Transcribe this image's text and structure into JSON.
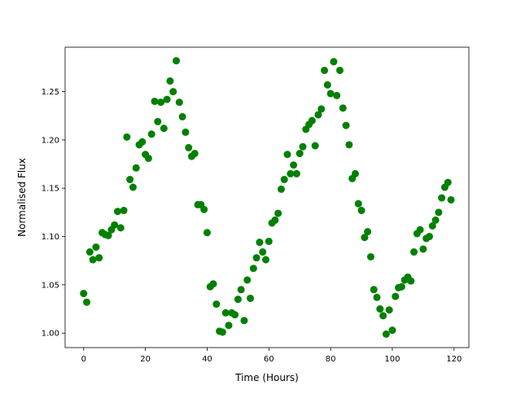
{
  "chart_data": {
    "type": "scatter",
    "title": "",
    "xlabel": "Time (Hours)",
    "ylabel": "Normalised Flux",
    "xlim": [
      -6,
      124.8
    ],
    "ylim": [
      0.985,
      1.296
    ],
    "xticks": [
      0,
      20,
      40,
      60,
      80,
      100,
      120
    ],
    "xtick_labels": [
      "0",
      "20",
      "40",
      "60",
      "80",
      "100",
      "120"
    ],
    "yticks": [
      1.0,
      1.05,
      1.1,
      1.15,
      1.2,
      1.25
    ],
    "ytick_labels": [
      "1.00",
      "1.05",
      "1.10",
      "1.15",
      "1.20",
      "1.25"
    ],
    "grid": false,
    "marker_color": "#008000",
    "x": [
      0,
      1,
      2,
      3,
      4,
      5,
      6,
      7,
      8,
      9,
      10,
      11,
      12,
      13,
      14,
      15,
      16,
      17,
      18,
      19,
      20,
      21,
      22,
      23,
      24,
      25,
      26,
      27,
      28,
      29,
      30,
      31,
      32,
      33,
      34,
      35,
      36,
      37,
      38,
      39,
      40,
      41,
      42,
      43,
      44,
      45,
      46,
      47,
      48,
      49,
      50,
      51,
      52,
      53,
      54,
      55,
      56,
      57,
      58,
      59,
      60,
      61,
      62,
      63,
      64,
      65,
      66,
      67,
      68,
      69,
      70,
      71,
      72,
      73,
      74,
      75,
      76,
      77,
      78,
      79,
      80,
      81,
      82,
      83,
      84,
      85,
      86,
      87,
      88,
      89,
      90,
      91,
      92,
      93,
      94,
      95,
      96,
      97,
      98,
      99,
      100,
      101,
      102,
      103,
      104,
      105,
      106,
      107,
      108,
      109,
      110,
      111,
      112,
      113,
      114,
      115,
      116,
      117,
      118,
      119
    ],
    "y": [
      1.041,
      1.032,
      1.084,
      1.076,
      1.089,
      1.078,
      1.104,
      1.102,
      1.101,
      1.107,
      1.112,
      1.126,
      1.109,
      1.127,
      1.203,
      1.159,
      1.151,
      1.171,
      1.195,
      1.198,
      1.185,
      1.181,
      1.206,
      1.24,
      1.219,
      1.239,
      1.212,
      1.242,
      1.261,
      1.25,
      1.282,
      1.239,
      1.224,
      1.208,
      1.192,
      1.183,
      1.186,
      1.133,
      1.133,
      1.128,
      1.104,
      1.048,
      1.051,
      1.03,
      1.002,
      1.001,
      1.021,
      1.008,
      1.021,
      1.019,
      1.035,
      1.045,
      1.013,
      1.055,
      1.036,
      1.067,
      1.078,
      1.094,
      1.084,
      1.076,
      1.095,
      1.114,
      1.117,
      1.124,
      1.149,
      1.159,
      1.185,
      1.165,
      1.174,
      1.165,
      1.186,
      1.193,
      1.211,
      1.216,
      1.22,
      1.194,
      1.226,
      1.232,
      1.272,
      1.257,
      1.248,
      1.281,
      1.246,
      1.272,
      1.233,
      1.215,
      1.195,
      1.16,
      1.165,
      1.134,
      1.127,
      1.099,
      1.105,
      1.079,
      1.045,
      1.037,
      1.025,
      1.018,
      0.999,
      1.024,
      1.003,
      1.038,
      1.047,
      1.048,
      1.055,
      1.058,
      1.054,
      1.084,
      1.103,
      1.107,
      1.087,
      1.098,
      1.1,
      1.111,
      1.117,
      1.125,
      1.14,
      1.151,
      1.156,
      1.138
    ]
  }
}
